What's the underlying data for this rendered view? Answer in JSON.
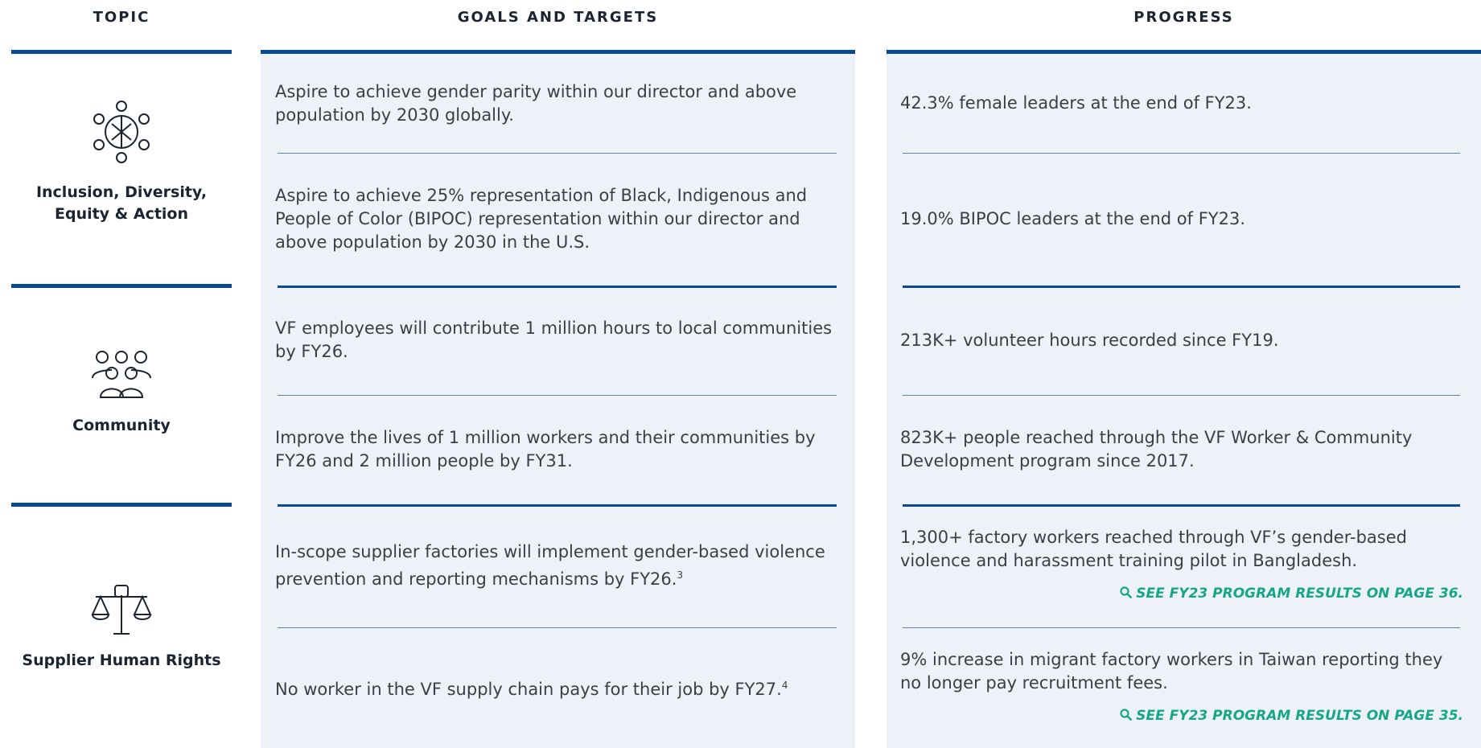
{
  "headers": [
    "TOPIC",
    "GOALS AND TARGETS",
    "PROGRESS"
  ],
  "topics": [
    {
      "label": "Inclusion, Diversity, Equity & Action"
    },
    {
      "label": "Community"
    },
    {
      "label": "Supplier Human Rights"
    }
  ],
  "rows": [
    {
      "goal": "Aspire to achieve gender parity within our director and above population by 2030 globally.",
      "progress": "42.3% female leaders at the end of FY23."
    },
    {
      "goal": "Aspire to achieve 25% representation of Black, Indigenous and People of Color (BIPOC) representation within our director and above population by 2030 in the U.S.",
      "progress": "19.0% BIPOC leaders at the end of FY23."
    },
    {
      "goal": "VF employees will contribute 1 million hours to local communities by FY26.",
      "progress": "213K+ volunteer hours recorded since FY19."
    },
    {
      "goal": "Improve the lives of 1 million workers and their communities by FY26 and 2 million people by FY31.",
      "progress": "823K+ people reached through the VF Worker & Community Development program since 2017."
    },
    {
      "goal": "In-scope supplier factories will implement gender-based violence prevention and reporting mechanisms by FY26.",
      "goal_note": "3",
      "progress": "1,300+ factory workers reached through VF’s gender-based violence and harassment training pilot in Bangladesh.",
      "link": "SEE FY23 PROGRAM RESULTS ON PAGE 36."
    },
    {
      "goal": "No worker in the VF supply chain pays for their job by FY27.",
      "goal_note": "4",
      "progress": "9% increase in migrant factory workers in Taiwan reporting they no longer pay recruitment fees.",
      "link": "SEE FY23 PROGRAM RESULTS ON PAGE 35."
    }
  ]
}
